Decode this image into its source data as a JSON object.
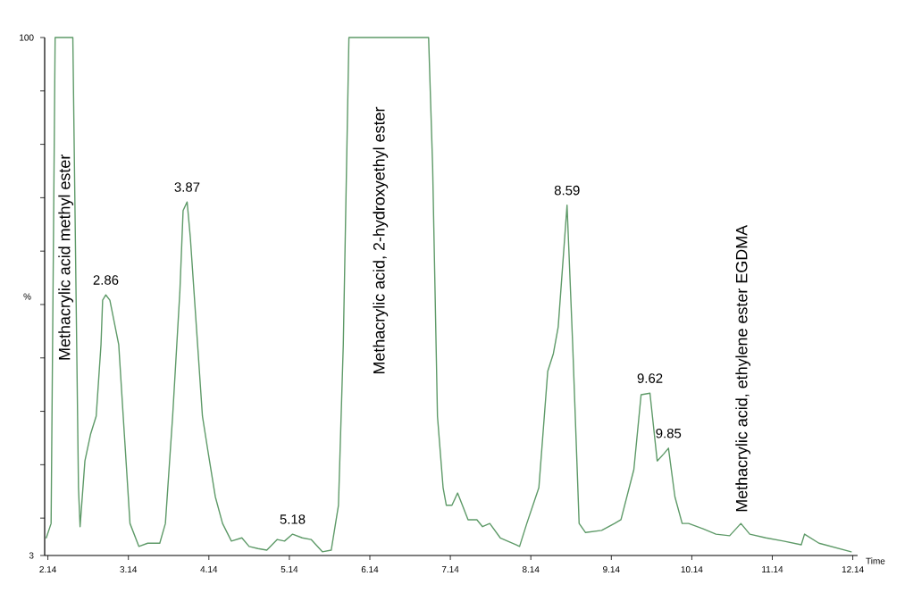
{
  "chart_data": {
    "type": "line",
    "xlabel": "Time",
    "ylabel": "%",
    "xlim": [
      2.1,
      12.2
    ],
    "ylim": [
      3,
      100
    ],
    "xticks": [
      2.14,
      3.14,
      4.14,
      5.14,
      6.14,
      7.14,
      8.14,
      9.14,
      10.14,
      11.14,
      12.14
    ],
    "yticks": [
      3,
      {
        "value": 10,
        "label": null
      },
      {
        "value": 20,
        "label": null
      },
      {
        "value": 30,
        "label": null
      },
      {
        "value": 40,
        "label": null
      },
      {
        "value": 50,
        "label": null
      },
      {
        "value": 60,
        "label": null
      },
      {
        "value": 70,
        "label": null
      },
      {
        "value": 80,
        "label": null
      },
      {
        "value": 90,
        "label": null
      },
      100
    ],
    "marker": "none",
    "line_style": "solid",
    "series": [
      {
        "color": "#5e9a68",
        "x": [
          2.12,
          2.18,
          2.23,
          2.45,
          2.47,
          2.52,
          2.54,
          2.6,
          2.67,
          2.74,
          2.8,
          2.82,
          2.86,
          2.91,
          3.02,
          3.09,
          3.16,
          3.27,
          3.38,
          3.53,
          3.6,
          3.69,
          3.78,
          3.82,
          3.87,
          3.91,
          4.0,
          4.06,
          4.13,
          4.22,
          4.31,
          4.42,
          4.55,
          4.64,
          4.75,
          4.86,
          4.99,
          5.08,
          5.18,
          5.3,
          5.41,
          5.55,
          5.66,
          5.75,
          5.81,
          5.88,
          6.87,
          6.92,
          6.98,
          7.05,
          7.09,
          7.16,
          7.23,
          7.29,
          7.36,
          7.47,
          7.54,
          7.63,
          7.76,
          7.96,
          8.0,
          8.09,
          8.24,
          8.35,
          8.42,
          8.48,
          8.59,
          8.66,
          8.74,
          8.82,
          9.02,
          9.18,
          9.26,
          9.42,
          9.51,
          9.62,
          9.71,
          9.79,
          9.85,
          9.93,
          10.02,
          10.1,
          10.28,
          10.44,
          10.61,
          10.75,
          10.86,
          11.06,
          11.28,
          11.5,
          11.54,
          11.72,
          12.12
        ],
        "values": [
          6.3,
          9.0,
          100,
          100,
          75.9,
          15.7,
          8.4,
          20.7,
          25.7,
          29.1,
          42.5,
          50.8,
          51.8,
          50.8,
          42.5,
          25.7,
          9.0,
          4.7,
          5.3,
          5.3,
          9.0,
          29.1,
          52.5,
          67.6,
          69.2,
          62.5,
          42.5,
          29.1,
          22.4,
          14.0,
          9.0,
          5.7,
          6.3,
          4.7,
          4.3,
          4.0,
          6.0,
          5.7,
          7.0,
          6.3,
          6.0,
          3.7,
          4.0,
          12.4,
          42.5,
          100,
          100,
          75.9,
          29.1,
          15.7,
          12.4,
          12.4,
          14.7,
          12.4,
          9.7,
          9.7,
          8.4,
          9.0,
          6.3,
          5.0,
          4.7,
          9.0,
          15.7,
          37.5,
          40.8,
          45.8,
          68.6,
          42.5,
          9.0,
          7.3,
          7.7,
          9.0,
          9.7,
          19.1,
          33.1,
          33.4,
          20.7,
          22.0,
          23.1,
          14.0,
          9.0,
          9.0,
          8.0,
          7.0,
          6.7,
          9.0,
          7.0,
          6.3,
          5.7,
          5.0,
          7.0,
          5.3,
          3.7
        ]
      }
    ],
    "annotations": [
      "Methacrylic acid methyl ester",
      {
        "text": "2.86",
        "x": 2.86,
        "y": 51.8
      },
      {
        "text": "3.87",
        "x": 3.87,
        "y": 69.2
      },
      {
        "text": "5.18",
        "x": 5.18,
        "y": 7.0
      },
      "Methacrylic acid, 2-hydroxyethyl ester",
      {
        "text": "8.59",
        "x": 8.59,
        "y": 68.6
      },
      {
        "text": "9.62",
        "x": 9.62,
        "y": 33.4
      },
      {
        "text": "9.85",
        "x": 9.85,
        "y": 23.1
      },
      "Methacrylic acid, ethylene ester EGDMA"
    ]
  }
}
